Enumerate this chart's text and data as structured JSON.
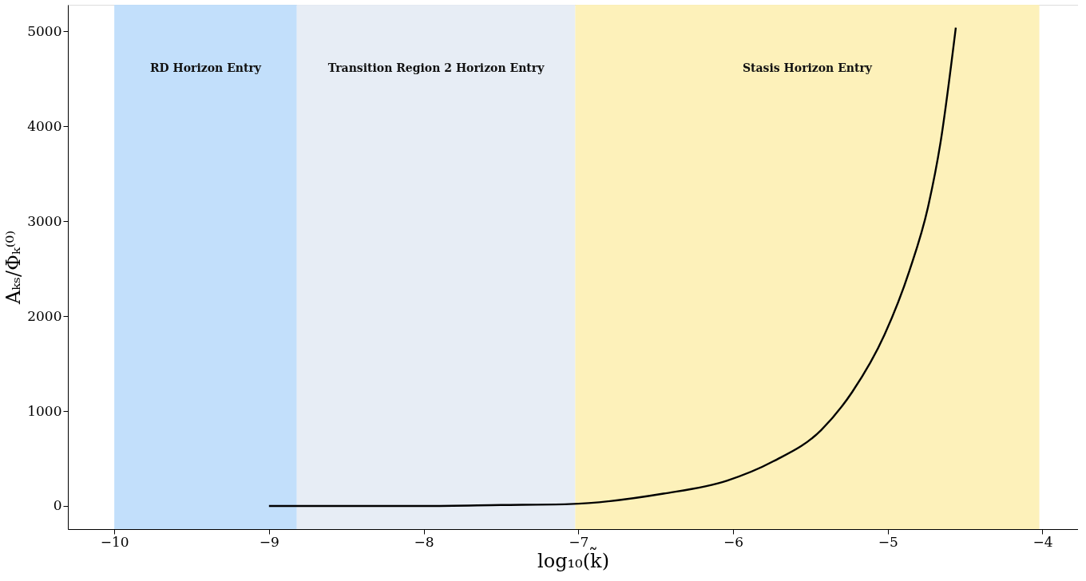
{
  "chart_data": {
    "type": "line",
    "xlabel": "log₁₀(k̃)",
    "ylabel": "Aₖₛ/Φₖ⁽⁰⁾",
    "series": [
      {
        "color": "#000000",
        "x": [
          -9.0,
          -8.5,
          -8.0,
          -7.5,
          -7.06,
          -6.45,
          -6.04,
          -5.74,
          -5.43,
          -5.23,
          -5.02,
          -4.86,
          -4.74,
          -4.66,
          -4.56
        ],
        "values": [
          0,
          0,
          0,
          10,
          20,
          130,
          266,
          470,
          800,
          1200,
          1807,
          2477,
          3146,
          3817,
          5039
        ]
      }
    ],
    "bands": [
      {
        "axis": "x",
        "from": -10,
        "to": -8.82,
        "label": "RD Horizon Entry",
        "color": "#bbdcfb"
      },
      {
        "axis": "x",
        "from": -8.82,
        "to": -7.02,
        "label": "Transition Region 2 Horizon Entry",
        "color": "#e4ebf4"
      },
      {
        "axis": "x",
        "from": -7.02,
        "to": -4.02,
        "label": "Stasis Horizon Entry",
        "color": "#fdefb2"
      }
    ],
    "xlim": [
      -10.3,
      -3.77
    ],
    "xticks": [
      -10,
      -9,
      -8,
      -7,
      -6,
      -5,
      -4
    ],
    "ylim": [
      -244,
      5279
    ],
    "yticks": [
      0,
      1000,
      2000,
      3000,
      4000,
      5000
    ],
    "grid": false,
    "line_style": "solid",
    "marker": "none"
  }
}
